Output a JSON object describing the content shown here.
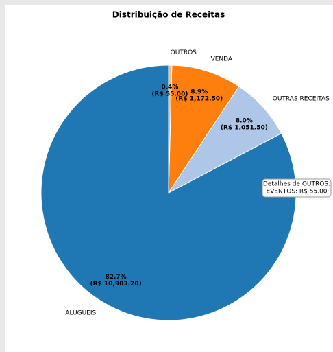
{
  "chart_data": {
    "type": "pie",
    "title": "Distribuição de Receitas",
    "categories": [
      "ALUGUÉIS",
      "OUTRAS RECEITAS",
      "VENDA",
      "OUTROS"
    ],
    "values": [
      10903.2,
      1051.5,
      1172.5,
      55.0
    ],
    "percent_labels": [
      "82.7%",
      "8.0%",
      "8.9%",
      "0.4%"
    ],
    "value_labels": [
      "(R$ 10,903.20)",
      "(R$ 1,051.50)",
      "(R$ 1,172.50)",
      "(R$ 55.00)"
    ],
    "colors": [
      "#1f77b4",
      "#aec7e8",
      "#ff7f0e",
      "#ffbb78"
    ],
    "start_angle": 90,
    "counterclock": true,
    "annotation": [
      "Detalhes de OUTROS:",
      "EVENTOS: R$ 55.00"
    ]
  }
}
